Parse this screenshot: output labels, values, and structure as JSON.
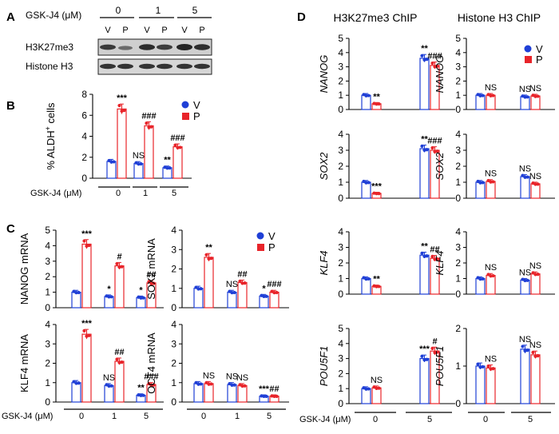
{
  "colors": {
    "V": "#1f3fd6",
    "P": "#e8242a",
    "axis": "#000000",
    "blot_bg": "#cfcfcf"
  },
  "legend": {
    "V": "V",
    "P": "P"
  },
  "panel_labels": {
    "A": "A",
    "B": "B",
    "C": "C",
    "D": "D"
  },
  "panelA": {
    "treatment_label": "GSK-J4 (μM)",
    "doses": [
      "0",
      "1",
      "5"
    ],
    "lanes": [
      "V",
      "P",
      "V",
      "P",
      "V",
      "P"
    ],
    "rows": [
      "H3K27me3",
      "Histone H3"
    ]
  },
  "panelD": {
    "title_left": "H3K27me3 ChIP",
    "title_right": "Histone H3 ChIP"
  },
  "x_label": "GSK-J4 (μM)",
  "chart_data": [
    {
      "id": "B",
      "type": "bar",
      "ylabel_main": "% ALDH",
      "ylabel_sup": "+",
      "ylabel_rest": " cells",
      "ylim": [
        0,
        8
      ],
      "yticks": [
        "0",
        "2",
        "4",
        "6",
        "8"
      ],
      "categories": [
        "0",
        "1",
        "5"
      ],
      "series": [
        {
          "name": "V",
          "values": [
            1.6,
            1.4,
            1.0
          ]
        },
        {
          "name": "P",
          "values": [
            6.6,
            5.0,
            3.0
          ]
        }
      ],
      "annotations": {
        "V": [
          "",
          "NS",
          "**"
        ],
        "P": [
          "***",
          "###",
          "###"
        ]
      }
    },
    {
      "id": "C-NANOG",
      "type": "bar",
      "ylabel": "NANOG mRNA",
      "ylim": [
        0,
        5
      ],
      "yticks": [
        "0",
        "1",
        "2",
        "3",
        "4",
        "5"
      ],
      "categories": [
        "0",
        "1",
        "5"
      ],
      "series": [
        {
          "name": "V",
          "values": [
            1.0,
            0.72,
            0.65
          ]
        },
        {
          "name": "P",
          "values": [
            4.1,
            2.7,
            1.6
          ]
        }
      ],
      "annotations": {
        "V": [
          "",
          "*",
          "*"
        ],
        "P": [
          "***",
          "#",
          "##"
        ]
      }
    },
    {
      "id": "C-SOX2",
      "type": "bar",
      "ylabel": "SOX2 mRNA",
      "ylim": [
        0,
        4
      ],
      "yticks": [
        "0",
        "1",
        "2",
        "3",
        "4"
      ],
      "categories": [
        "0",
        "1",
        "5"
      ],
      "series": [
        {
          "name": "V",
          "values": [
            1.0,
            0.8,
            0.6
          ]
        },
        {
          "name": "P",
          "values": [
            2.6,
            1.3,
            0.8
          ]
        }
      ],
      "annotations": {
        "V": [
          "",
          "NS",
          "*"
        ],
        "P": [
          "**",
          "##",
          "###"
        ]
      }
    },
    {
      "id": "C-KLF4",
      "type": "bar",
      "ylabel": "KLF4 mRNA",
      "ylim": [
        0,
        4
      ],
      "yticks": [
        "0",
        "1",
        "2",
        "3",
        "4"
      ],
      "categories": [
        "0",
        "1",
        "5"
      ],
      "series": [
        {
          "name": "V",
          "values": [
            1.0,
            0.85,
            0.35
          ]
        },
        {
          "name": "P",
          "values": [
            3.5,
            2.1,
            0.9
          ]
        }
      ],
      "annotations": {
        "V": [
          "",
          "NS",
          "**"
        ],
        "P": [
          "***",
          "##",
          "###"
        ]
      }
    },
    {
      "id": "C-OCT4",
      "type": "bar",
      "ylabel": "OCT4 mRNA",
      "ylim": [
        0,
        4
      ],
      "yticks": [
        "0",
        "1",
        "2",
        "3",
        "4"
      ],
      "categories": [
        "0",
        "1",
        "5"
      ],
      "series": [
        {
          "name": "V",
          "values": [
            0.95,
            0.9,
            0.3
          ]
        },
        {
          "name": "P",
          "values": [
            0.95,
            0.85,
            0.3
          ]
        }
      ],
      "annotations": {
        "V": [
          "",
          "NS",
          "***"
        ],
        "P": [
          "NS",
          "NS",
          "##"
        ]
      }
    },
    {
      "id": "D-K27-NANOG",
      "type": "bar",
      "ylabel": "NANOG",
      "ylim": [
        0,
        5
      ],
      "yticks": [
        "0",
        "1",
        "2",
        "3",
        "4",
        "5"
      ],
      "categories": [
        "0",
        "5"
      ],
      "series": [
        {
          "name": "V",
          "values": [
            1.0,
            3.6
          ]
        },
        {
          "name": "P",
          "values": [
            0.4,
            3.1
          ]
        }
      ],
      "annotations": {
        "V": [
          "",
          "**"
        ],
        "P": [
          "**",
          "###"
        ]
      }
    },
    {
      "id": "D-H3-NANOG",
      "type": "bar",
      "ylabel": "NANOG",
      "ylim": [
        0,
        5
      ],
      "yticks": [
        "0",
        "1",
        "2",
        "3",
        "4",
        "5"
      ],
      "categories": [
        "0",
        "5"
      ],
      "series": [
        {
          "name": "V",
          "values": [
            1.0,
            0.9
          ]
        },
        {
          "name": "P",
          "values": [
            1.0,
            0.95
          ]
        }
      ],
      "annotations": {
        "V": [
          "",
          "NS"
        ],
        "P": [
          "NS",
          "NS"
        ]
      }
    },
    {
      "id": "D-K27-SOX2",
      "type": "bar",
      "ylabel": "SOX2",
      "ylim": [
        0,
        4
      ],
      "yticks": [
        "0",
        "1",
        "2",
        "3",
        "4"
      ],
      "categories": [
        "0",
        "5"
      ],
      "series": [
        {
          "name": "V",
          "values": [
            1.0,
            3.1
          ]
        },
        {
          "name": "P",
          "values": [
            0.3,
            3.0
          ]
        }
      ],
      "annotations": {
        "V": [
          "",
          "**"
        ],
        "P": [
          "***",
          "###"
        ]
      }
    },
    {
      "id": "D-H3-SOX2",
      "type": "bar",
      "ylabel": "SOX2",
      "ylim": [
        0,
        4
      ],
      "yticks": [
        "0",
        "1",
        "2",
        "3",
        "4"
      ],
      "categories": [
        "0",
        "5"
      ],
      "series": [
        {
          "name": "V",
          "values": [
            1.0,
            1.35
          ]
        },
        {
          "name": "P",
          "values": [
            1.05,
            0.9
          ]
        }
      ],
      "annotations": {
        "V": [
          "",
          "NS"
        ],
        "P": [
          "NS",
          "NS"
        ]
      }
    },
    {
      "id": "D-K27-KLF4",
      "type": "bar",
      "ylabel": "KLF4",
      "ylim": [
        0,
        4
      ],
      "yticks": [
        "0",
        "1",
        "2",
        "3",
        "4"
      ],
      "categories": [
        "0",
        "5"
      ],
      "series": [
        {
          "name": "V",
          "values": [
            1.0,
            2.5
          ]
        },
        {
          "name": "P",
          "values": [
            0.5,
            2.3
          ]
        }
      ],
      "annotations": {
        "V": [
          "",
          "**"
        ],
        "P": [
          "**",
          "##"
        ]
      }
    },
    {
      "id": "D-H3-KLF4",
      "type": "bar",
      "ylabel": "KLF4",
      "ylim": [
        0,
        4
      ],
      "yticks": [
        "0",
        "1",
        "2",
        "3",
        "4"
      ],
      "categories": [
        "0",
        "5"
      ],
      "series": [
        {
          "name": "V",
          "values": [
            1.0,
            0.9
          ]
        },
        {
          "name": "P",
          "values": [
            1.2,
            1.3
          ]
        }
      ],
      "annotations": {
        "V": [
          "",
          "NS"
        ],
        "P": [
          "NS",
          "NS"
        ]
      }
    },
    {
      "id": "D-K27-POU5F1",
      "type": "bar",
      "ylabel": "POU5F1",
      "ylim": [
        0,
        5
      ],
      "yticks": [
        "0",
        "1",
        "2",
        "3",
        "4",
        "5"
      ],
      "categories": [
        "0",
        "5"
      ],
      "series": [
        {
          "name": "V",
          "values": [
            1.0,
            3.0
          ]
        },
        {
          "name": "P",
          "values": [
            1.05,
            3.5
          ]
        }
      ],
      "annotations": {
        "V": [
          "",
          "***"
        ],
        "P": [
          "NS",
          "#"
        ]
      }
    },
    {
      "id": "D-H3-POU5F1",
      "type": "bar",
      "ylabel": "POU5F1",
      "ylim": [
        0,
        2
      ],
      "yticks": [
        "0",
        "1",
        "2"
      ],
      "categories": [
        "0",
        "5"
      ],
      "series": [
        {
          "name": "V",
          "values": [
            1.0,
            1.45
          ]
        },
        {
          "name": "P",
          "values": [
            0.95,
            1.3
          ]
        }
      ],
      "annotations": {
        "V": [
          "",
          "NS"
        ],
        "P": [
          "NS",
          "NS"
        ]
      }
    }
  ]
}
